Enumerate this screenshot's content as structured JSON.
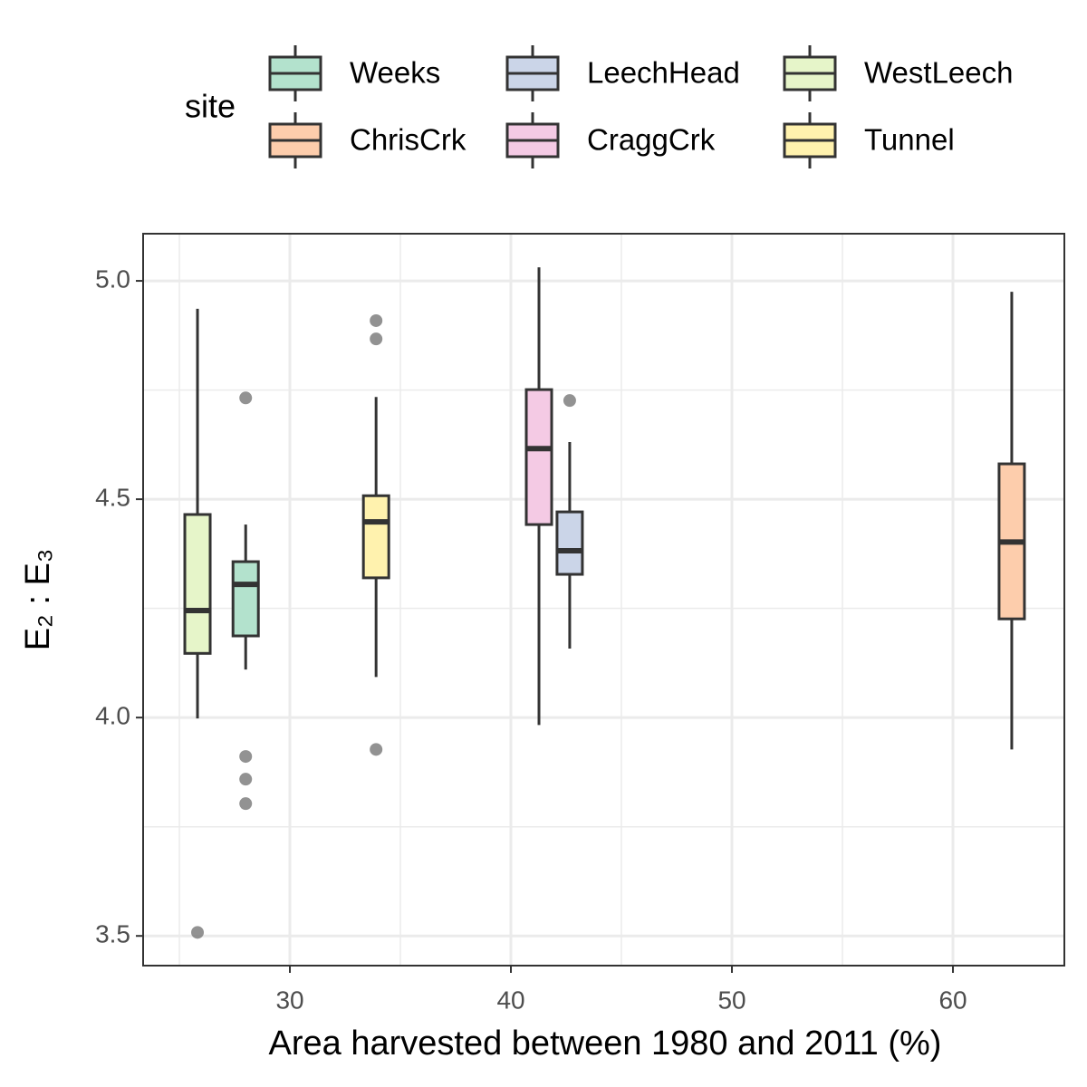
{
  "chart_data": {
    "type": "boxplot",
    "xlabel": "Area harvested between 1980 and 2011 (%)",
    "ylabel": "E₂ : E₃",
    "legend_title": "site",
    "legend_position": "top",
    "grid": true,
    "xlim": [
      23.36,
      65.04
    ],
    "ylim": [
      3.432,
      5.108
    ],
    "xticks": [
      30,
      40,
      50,
      60
    ],
    "yticks": [
      {
        "value": 3.5,
        "label": "3.5"
      },
      {
        "value": 4.0,
        "label": "4.0"
      },
      {
        "value": 4.5,
        "label": "4.5"
      },
      {
        "value": 5.0,
        "label": "5.0"
      }
    ],
    "x_minor_grid": [
      25,
      35,
      45,
      55
    ],
    "y_minor_grid": [
      3.75,
      4.25,
      4.75
    ],
    "series": [
      {
        "name": "Weeks",
        "color": "#b3e2cd",
        "x": 28.0,
        "whislo": 4.11,
        "q1": 4.187,
        "med": 4.305,
        "q3": 4.357,
        "whishi": 4.442,
        "outliers": [
          4.732,
          3.911,
          3.859,
          3.803
        ]
      },
      {
        "name": "ChrisCrk",
        "color": "#fdcdac",
        "x": 62.66,
        "whislo": 3.927,
        "q1": 4.226,
        "med": 4.402,
        "q3": 4.581,
        "whishi": 4.975,
        "outliers": []
      },
      {
        "name": "LeechHead",
        "color": "#cbd5e8",
        "x": 42.66,
        "whislo": 4.158,
        "q1": 4.328,
        "med": 4.382,
        "q3": 4.471,
        "whishi": 4.631,
        "outliers": [
          4.726
        ]
      },
      {
        "name": "CraggCrk",
        "color": "#f4cae4",
        "x": 41.27,
        "whislo": 3.983,
        "q1": 4.442,
        "med": 4.616,
        "q3": 4.751,
        "whishi": 5.031,
        "outliers": []
      },
      {
        "name": "WestLeech",
        "color": "#e6f5c9",
        "x": 25.82,
        "whislo": 3.998,
        "q1": 4.147,
        "med": 4.245,
        "q3": 4.465,
        "whishi": 4.936,
        "outliers": [
          3.508
        ]
      },
      {
        "name": "Tunnel",
        "color": "#fff2ae",
        "x": 33.9,
        "whislo": 4.093,
        "q1": 4.32,
        "med": 4.448,
        "q3": 4.508,
        "whishi": 4.734,
        "outliers": [
          4.909,
          4.867,
          3.927
        ]
      }
    ]
  }
}
